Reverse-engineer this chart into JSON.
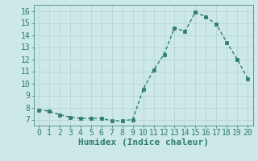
{
  "x": [
    0,
    1,
    2,
    3,
    4,
    5,
    6,
    7,
    8,
    9,
    10,
    11,
    12,
    13,
    14,
    15,
    16,
    17,
    18,
    19,
    20
  ],
  "y": [
    7.8,
    7.7,
    7.4,
    7.2,
    7.1,
    7.1,
    7.1,
    6.9,
    6.9,
    7.0,
    9.5,
    11.1,
    12.4,
    14.6,
    14.3,
    15.9,
    15.5,
    14.9,
    13.4,
    12.0,
    10.4
  ],
  "line_color": "#2e7d6e",
  "bg_color": "#cce8e8",
  "grid_color": "#b8d4d4",
  "xlabel": "Humidex (Indice chaleur)",
  "ylim": [
    6.5,
    16.5
  ],
  "xlim": [
    -0.5,
    20.5
  ],
  "yticks": [
    7,
    8,
    9,
    10,
    11,
    12,
    13,
    14,
    15,
    16
  ],
  "xticks": [
    0,
    1,
    2,
    3,
    4,
    5,
    6,
    7,
    8,
    9,
    10,
    11,
    12,
    13,
    14,
    15,
    16,
    17,
    18,
    19,
    20
  ],
  "marker_size": 2.5,
  "line_width": 1.0,
  "tick_fontsize": 7,
  "xlabel_fontsize": 8
}
